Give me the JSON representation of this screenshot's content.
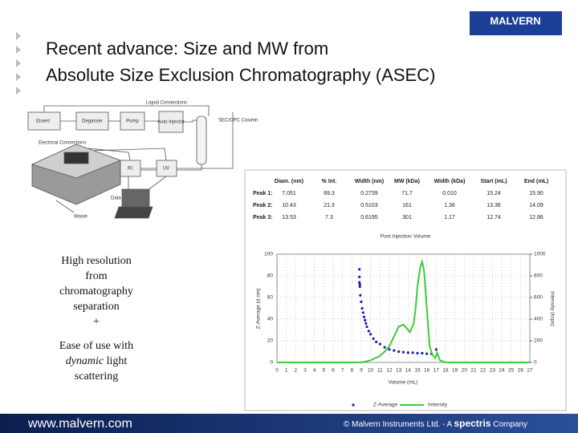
{
  "slide": {
    "title_lines": [
      "Recent advance: Size and MW from",
      "Absolute Size Exclusion Chromatography (ASEC)"
    ],
    "logo": "MALVERN",
    "left_text": [
      "High resolution",
      "from",
      "chromatography",
      "separation",
      "+",
      "Ease of use with",
      "dynamic",
      "light",
      "scattering"
    ],
    "footer_url": "www.malvern.com",
    "footer_copyright": "© Malvern Instruments Ltd. - A",
    "footer_brand": "spectris",
    "footer_company": "Company"
  },
  "diagram": {
    "liquid": "Liquid Connections",
    "electrical": "Electrical Connections",
    "eluent": "Eluent",
    "degasser": "Degasser",
    "pump": "Pump",
    "injector": "Auto Injector",
    "column": "SEC/GPC Column",
    "ri": "RI",
    "uv": "UV",
    "data": "Data",
    "waste": "Waste"
  },
  "table": {
    "header": [
      "Diam. (nm)",
      "% Int.",
      "Width (nm)",
      "MW (kDa)",
      "Width (kDa)",
      "Start (mL)",
      "End (mL)"
    ],
    "rows": [
      [
        "Peak 1:",
        "7.051",
        "69.3",
        "0.2739",
        "71.7",
        "0.010",
        "15.24",
        "15.90"
      ],
      [
        "Peak 2:",
        "10.43",
        "21.3",
        "0.5103",
        "161",
        "1.36",
        "13.36",
        "14.09"
      ],
      [
        "Peak 3:",
        "13.53",
        "7.3",
        "0.6195",
        "301",
        "1.17",
        "12.74",
        "12.86"
      ]
    ]
  },
  "chart_data": {
    "type": "scatter",
    "title": "Post Injection Volume",
    "xlabel": "Volume (mL)",
    "ylabel": "Z-Average (d.nm)",
    "y2label": "Intensity (kcps)",
    "xlim": [
      0,
      27
    ],
    "xticks": [
      0,
      1,
      2,
      3,
      4,
      5,
      6,
      7,
      8,
      9,
      10,
      11,
      12,
      13,
      14,
      15,
      16,
      17,
      18,
      19,
      20,
      21,
      22,
      23,
      24,
      25,
      26,
      27
    ],
    "ylim": [
      0,
      100
    ],
    "yticks": [
      0,
      20,
      40,
      60,
      80,
      100
    ],
    "y2lim": [
      0,
      1000
    ],
    "y2ticks": [
      0,
      200,
      400,
      600,
      800,
      1000
    ],
    "grid": true,
    "series": [
      {
        "name": "Z-Average",
        "color": "#1f1fa8",
        "mode": "markers",
        "x": [
          8.8,
          8.8,
          8.8,
          8.85,
          8.85,
          8.9,
          9.0,
          9.1,
          9.2,
          9.3,
          9.4,
          9.5,
          9.6,
          9.8,
          10.0,
          10.3,
          10.6,
          11.0,
          11.5,
          12.0,
          12.5,
          13.0,
          13.5,
          14.0,
          14.5,
          15.0,
          15.5,
          16.0,
          16.5,
          17.0
        ],
        "values": [
          86,
          79,
          74,
          72,
          70,
          62,
          56,
          50,
          46,
          42,
          39,
          36,
          33,
          29,
          26,
          22,
          19,
          17,
          14,
          12,
          11,
          10,
          9.5,
          9,
          9,
          8.5,
          8.5,
          8,
          8,
          12
        ]
      },
      {
        "name": "Intensity",
        "color": "#3ccc3c",
        "mode": "lines",
        "axis": "y2",
        "x": [
          0,
          8,
          9,
          10,
          11,
          11.5,
          12,
          12.5,
          13,
          13.5,
          13.8,
          14.2,
          14.6,
          14.8,
          15.0,
          15.3,
          15.5,
          15.7,
          16.0,
          16.3,
          16.6,
          16.9,
          17.1,
          17.4,
          18,
          27
        ],
        "values": [
          0,
          0,
          0,
          20,
          60,
          100,
          150,
          240,
          330,
          350,
          320,
          280,
          360,
          500,
          700,
          880,
          930,
          850,
          500,
          150,
          70,
          40,
          90,
          20,
          0,
          0
        ]
      }
    ]
  }
}
